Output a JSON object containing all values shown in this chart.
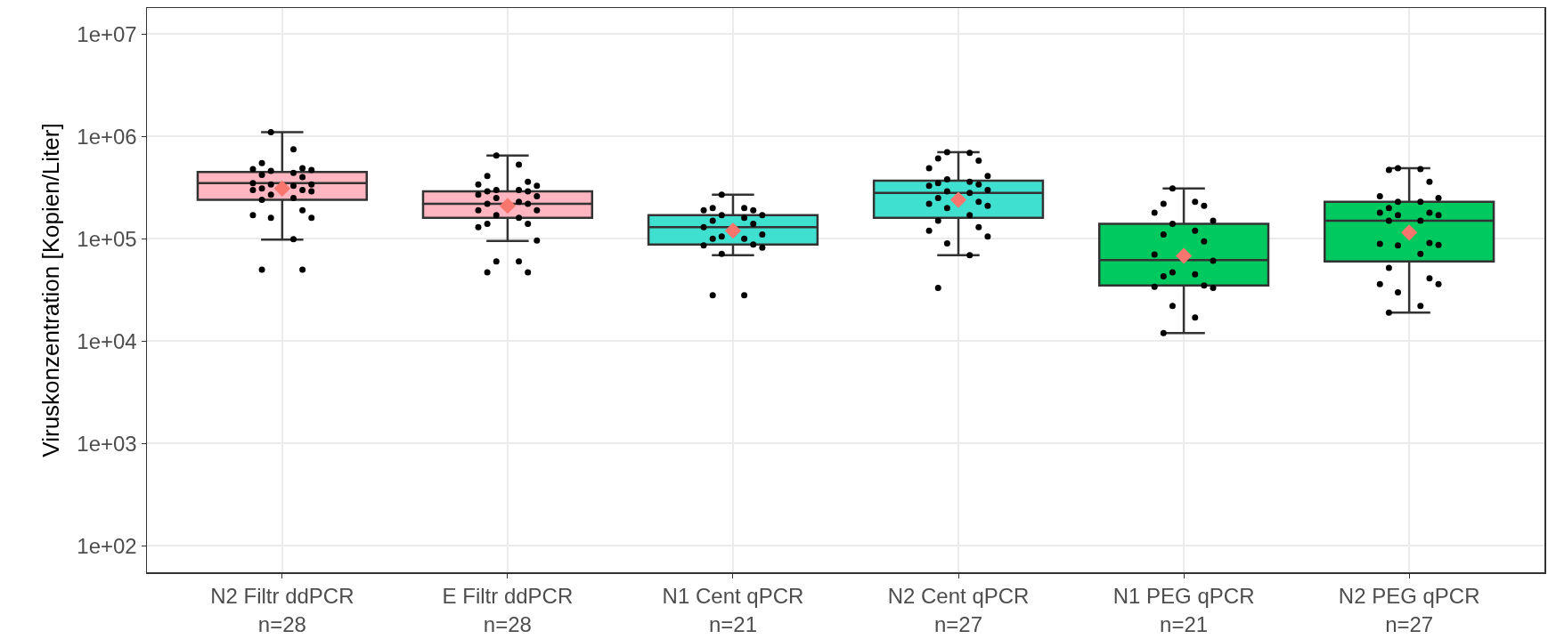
{
  "chart_data": {
    "type": "box",
    "ylabel": "Viruskonzentration [Kopien/Liter]",
    "categories": [
      "N2 Filtr ddPCR\nn=28",
      "E Filtr ddPCR\nn=28",
      "N1 Cent qPCR\nn=21",
      "N2 Cent qPCR\nn=27",
      "N1 PEG qPCR\nn=21",
      "N2 PEG qPCR\nn=27"
    ],
    "log": "y",
    "grid": true,
    "ylim": [
      55,
      18000000
    ],
    "yticks": [
      {
        "value": 100,
        "label": "1e+02"
      },
      {
        "value": 1000,
        "label": "1e+03"
      },
      {
        "value": 10000,
        "label": "1e+04"
      },
      {
        "value": 100000,
        "label": "1e+05"
      },
      {
        "value": 1000000,
        "label": "1e+06"
      },
      {
        "value": 10000000,
        "label": "1e+07"
      }
    ],
    "series": [
      {
        "colors": [
          "#ffb6c1",
          "#ffb6c1",
          "#40e0d0",
          "#40e0d0",
          "#00c95f",
          "#00c95f"
        ],
        "boxes": [
          {
            "low": 98000,
            "q1": 240000,
            "median": 350000,
            "q3": 450000,
            "high": 1100000,
            "mean": 310000
          },
          {
            "low": 95000,
            "q1": 160000,
            "median": 220000,
            "q3": 290000,
            "high": 650000,
            "mean": 210000
          },
          {
            "low": 69000,
            "q1": 88000,
            "median": 130000,
            "q3": 170000,
            "high": 270000,
            "mean": 120000
          },
          {
            "low": 69000,
            "q1": 160000,
            "median": 280000,
            "q3": 370000,
            "high": 700000,
            "mean": 240000
          },
          {
            "low": 12000,
            "q1": 35000,
            "median": 62000,
            "q3": 140000,
            "high": 310000,
            "mean": 68000
          },
          {
            "low": 19000,
            "q1": 60000,
            "median": 150000,
            "q3": 230000,
            "high": 490000,
            "mean": 115000
          }
        ]
      },
      {
        "type": "scatter",
        "color": "#000000",
        "marker": "circle",
        "x": [
          "N2 Filtr ddPCR\nn=28",
          "N2 Filtr ddPCR\nn=28",
          "N2 Filtr ddPCR\nn=28",
          "N2 Filtr ddPCR\nn=28",
          "N2 Filtr ddPCR\nn=28",
          "N2 Filtr ddPCR\nn=28",
          "N2 Filtr ddPCR\nn=28",
          "N2 Filtr ddPCR\nn=28",
          "N2 Filtr ddPCR\nn=28",
          "N2 Filtr ddPCR\nn=28",
          "N2 Filtr ddPCR\nn=28",
          "N2 Filtr ddPCR\nn=28",
          "N2 Filtr ddPCR\nn=28",
          "N2 Filtr ddPCR\nn=28",
          "N2 Filtr ddPCR\nn=28",
          "N2 Filtr ddPCR\nn=28",
          "N2 Filtr ddPCR\nn=28",
          "N2 Filtr ddPCR\nn=28",
          "N2 Filtr ddPCR\nn=28",
          "N2 Filtr ddPCR\nn=28",
          "N2 Filtr ddPCR\nn=28",
          "N2 Filtr ddPCR\nn=28",
          "N2 Filtr ddPCR\nn=28",
          "N2 Filtr ddPCR\nn=28",
          "N2 Filtr ddPCR\nn=28",
          "N2 Filtr ddPCR\nn=28",
          "N2 Filtr ddPCR\nn=28",
          "N2 Filtr ddPCR\nn=28",
          "E Filtr ddPCR\nn=28",
          "E Filtr ddPCR\nn=28",
          "E Filtr ddPCR\nn=28",
          "E Filtr ddPCR\nn=28",
          "E Filtr ddPCR\nn=28",
          "E Filtr ddPCR\nn=28",
          "E Filtr ddPCR\nn=28",
          "E Filtr ddPCR\nn=28",
          "E Filtr ddPCR\nn=28",
          "E Filtr ddPCR\nn=28",
          "E Filtr ddPCR\nn=28",
          "E Filtr ddPCR\nn=28",
          "E Filtr ddPCR\nn=28",
          "E Filtr ddPCR\nn=28",
          "E Filtr ddPCR\nn=28",
          "E Filtr ddPCR\nn=28",
          "E Filtr ddPCR\nn=28",
          "E Filtr ddPCR\nn=28",
          "E Filtr ddPCR\nn=28",
          "E Filtr ddPCR\nn=28",
          "E Filtr ddPCR\nn=28",
          "E Filtr ddPCR\nn=28",
          "E Filtr ddPCR\nn=28",
          "E Filtr ddPCR\nn=28",
          "E Filtr ddPCR\nn=28",
          "E Filtr ddPCR\nn=28",
          "E Filtr ddPCR\nn=28",
          "E Filtr ddPCR\nn=28",
          "N1 Cent qPCR\nn=21",
          "N1 Cent qPCR\nn=21",
          "N1 Cent qPCR\nn=21",
          "N1 Cent qPCR\nn=21",
          "N1 Cent qPCR\nn=21",
          "N1 Cent qPCR\nn=21",
          "N1 Cent qPCR\nn=21",
          "N1 Cent qPCR\nn=21",
          "N1 Cent qPCR\nn=21",
          "N1 Cent qPCR\nn=21",
          "N1 Cent qPCR\nn=21",
          "N1 Cent qPCR\nn=21",
          "N1 Cent qPCR\nn=21",
          "N1 Cent qPCR\nn=21",
          "N1 Cent qPCR\nn=21",
          "N1 Cent qPCR\nn=21",
          "N1 Cent qPCR\nn=21",
          "N1 Cent qPCR\nn=21",
          "N1 Cent qPCR\nn=21",
          "N1 Cent qPCR\nn=21",
          "N1 Cent qPCR\nn=21",
          "N2 Cent qPCR\nn=27",
          "N2 Cent qPCR\nn=27",
          "N2 Cent qPCR\nn=27",
          "N2 Cent qPCR\nn=27",
          "N2 Cent qPCR\nn=27",
          "N2 Cent qPCR\nn=27",
          "N2 Cent qPCR\nn=27",
          "N2 Cent qPCR\nn=27",
          "N2 Cent qPCR\nn=27",
          "N2 Cent qPCR\nn=27",
          "N2 Cent qPCR\nn=27",
          "N2 Cent qPCR\nn=27",
          "N2 Cent qPCR\nn=27",
          "N2 Cent qPCR\nn=27",
          "N2 Cent qPCR\nn=27",
          "N2 Cent qPCR\nn=27",
          "N2 Cent qPCR\nn=27",
          "N2 Cent qPCR\nn=27",
          "N2 Cent qPCR\nn=27",
          "N2 Cent qPCR\nn=27",
          "N2 Cent qPCR\nn=27",
          "N2 Cent qPCR\nn=27",
          "N2 Cent qPCR\nn=27",
          "N2 Cent qPCR\nn=27",
          "N2 Cent qPCR\nn=27",
          "N2 Cent qPCR\nn=27",
          "N2 Cent qPCR\nn=27",
          "N1 PEG qPCR\nn=21",
          "N1 PEG qPCR\nn=21",
          "N1 PEG qPCR\nn=21",
          "N1 PEG qPCR\nn=21",
          "N1 PEG qPCR\nn=21",
          "N1 PEG qPCR\nn=21",
          "N1 PEG qPCR\nn=21",
          "N1 PEG qPCR\nn=21",
          "N1 PEG qPCR\nn=21",
          "N1 PEG qPCR\nn=21",
          "N1 PEG qPCR\nn=21",
          "N1 PEG qPCR\nn=21",
          "N1 PEG qPCR\nn=21",
          "N1 PEG qPCR\nn=21",
          "N1 PEG qPCR\nn=21",
          "N1 PEG qPCR\nn=21",
          "N1 PEG qPCR\nn=21",
          "N1 PEG qPCR\nn=21",
          "N1 PEG qPCR\nn=21",
          "N1 PEG qPCR\nn=21",
          "N1 PEG qPCR\nn=21",
          "N2 PEG qPCR\nn=27",
          "N2 PEG qPCR\nn=27",
          "N2 PEG qPCR\nn=27",
          "N2 PEG qPCR\nn=27",
          "N2 PEG qPCR\nn=27",
          "N2 PEG qPCR\nn=27",
          "N2 PEG qPCR\nn=27",
          "N2 PEG qPCR\nn=27",
          "N2 PEG qPCR\nn=27",
          "N2 PEG qPCR\nn=27",
          "N2 PEG qPCR\nn=27",
          "N2 PEG qPCR\nn=27",
          "N2 PEG qPCR\nn=27",
          "N2 PEG qPCR\nn=27",
          "N2 PEG qPCR\nn=27",
          "N2 PEG qPCR\nn=27",
          "N2 PEG qPCR\nn=27",
          "N2 PEG qPCR\nn=27",
          "N2 PEG qPCR\nn=27",
          "N2 PEG qPCR\nn=27",
          "N2 PEG qPCR\nn=27",
          "N2 PEG qPCR\nn=27",
          "N2 PEG qPCR\nn=27",
          "N2 PEG qPCR\nn=27",
          "N2 PEG qPCR\nn=27",
          "N2 PEG qPCR\nn=27",
          "N2 PEG qPCR\nn=27"
        ],
        "values": [
          1100000,
          750000,
          550000,
          490000,
          480000,
          470000,
          460000,
          440000,
          420000,
          400000,
          350000,
          340000,
          340000,
          330000,
          310000,
          300000,
          300000,
          290000,
          270000,
          250000,
          240000,
          190000,
          170000,
          160000,
          160000,
          99000,
          50000,
          50000,
          650000,
          530000,
          410000,
          360000,
          340000,
          330000,
          300000,
          300000,
          290000,
          290000,
          270000,
          260000,
          250000,
          230000,
          220000,
          220000,
          190000,
          190000,
          170000,
          160000,
          140000,
          140000,
          130000,
          96000,
          60000,
          60000,
          47000,
          47000,
          270000,
          200000,
          200000,
          190000,
          190000,
          170000,
          170000,
          160000,
          150000,
          140000,
          130000,
          110000,
          105000,
          100000,
          100000,
          88000,
          86000,
          82000,
          71000,
          28000,
          28000,
          700000,
          690000,
          610000,
          580000,
          490000,
          410000,
          380000,
          360000,
          350000,
          340000,
          330000,
          300000,
          290000,
          280000,
          250000,
          230000,
          220000,
          210000,
          200000,
          170000,
          150000,
          130000,
          120000,
          105000,
          90000,
          69000,
          33000,
          310000,
          230000,
          220000,
          210000,
          180000,
          150000,
          140000,
          120000,
          110000,
          94000,
          70000,
          61000,
          47000,
          45000,
          43000,
          35000,
          34000,
          33000,
          22000,
          17000,
          12000,
          490000,
          480000,
          470000,
          360000,
          260000,
          250000,
          230000,
          230000,
          200000,
          180000,
          180000,
          170000,
          170000,
          150000,
          150000,
          91000,
          89000,
          87000,
          86000,
          71000,
          52000,
          41000,
          36000,
          36000,
          30000,
          22000,
          19000
        ]
      }
    ]
  }
}
